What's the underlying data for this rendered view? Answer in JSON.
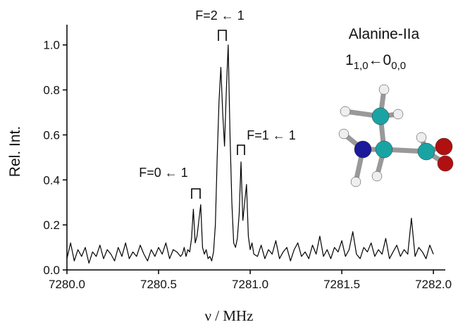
{
  "chart_data": {
    "type": "line",
    "x_label": "ν / MHz",
    "y_label": "Rel. Int.",
    "annotations": [
      "F=2 ← 1",
      "F=1 ← 1",
      "F=0 ← 1"
    ],
    "molecule": "Alanine-IIa",
    "transition": [
      "1",
      "1,0",
      "←0",
      "0,0"
    ],
    "xlim": [
      7280.0,
      7282.065
    ],
    "ylim": [
      0,
      1.09
    ],
    "xticks": [
      {
        "value": 7280,
        "label": "7280.0"
      },
      7280.5,
      {
        "value": 7281,
        "label": "7281.0"
      },
      7281.5,
      {
        "value": 7282,
        "label": "7282.0"
      }
    ],
    "yticks": [
      {
        "value": 0,
        "label": "0.0"
      },
      0.2,
      0.4,
      0.6,
      0.8,
      {
        "value": 1,
        "label": "1.0"
      }
    ],
    "color": "#000000",
    "x": [
      7280.0,
      7280.02,
      7280.04,
      7280.06,
      7280.08,
      7280.1,
      7280.12,
      7280.14,
      7280.16,
      7280.18,
      7280.2,
      7280.22,
      7280.24,
      7280.26,
      7280.28,
      7280.3,
      7280.32,
      7280.34,
      7280.36,
      7280.38,
      7280.4,
      7280.42,
      7280.44,
      7280.46,
      7280.48,
      7280.5,
      7280.52,
      7280.54,
      7280.56,
      7280.58,
      7280.6,
      7280.62,
      7280.63,
      7280.64,
      7280.65,
      7280.66,
      7280.67,
      7280.68,
      7280.69,
      7280.7,
      7280.71,
      7280.72,
      7280.73,
      7280.74,
      7280.75,
      7280.76,
      7280.77,
      7280.78,
      7280.79,
      7280.8,
      7280.81,
      7280.82,
      7280.83,
      7280.84,
      7280.85,
      7280.86,
      7280.87,
      7280.88,
      7280.89,
      7280.9,
      7280.91,
      7280.92,
      7280.93,
      7280.94,
      7280.95,
      7280.96,
      7280.97,
      7280.98,
      7280.99,
      7281.0,
      7281.01,
      7281.02,
      7281.04,
      7281.06,
      7281.08,
      7281.1,
      7281.12,
      7281.14,
      7281.16,
      7281.18,
      7281.2,
      7281.22,
      7281.24,
      7281.26,
      7281.28,
      7281.3,
      7281.32,
      7281.34,
      7281.36,
      7281.38,
      7281.4,
      7281.42,
      7281.44,
      7281.46,
      7281.48,
      7281.5,
      7281.52,
      7281.54,
      7281.56,
      7281.58,
      7281.6,
      7281.62,
      7281.64,
      7281.66,
      7281.68,
      7281.7,
      7281.72,
      7281.74,
      7281.76,
      7281.78,
      7281.8,
      7281.82,
      7281.84,
      7281.86,
      7281.88,
      7281.9,
      7281.92,
      7281.94,
      7281.96,
      7281.98,
      7282.0
    ],
    "values": [
      0.05,
      0.12,
      0.04,
      0.09,
      0.06,
      0.1,
      0.03,
      0.08,
      0.06,
      0.11,
      0.05,
      0.09,
      0.07,
      0.04,
      0.1,
      0.06,
      0.12,
      0.05,
      0.08,
      0.06,
      0.11,
      0.07,
      0.04,
      0.09,
      0.06,
      0.1,
      0.07,
      0.12,
      0.05,
      0.09,
      0.08,
      0.06,
      0.07,
      0.1,
      0.06,
      0.09,
      0.08,
      0.14,
      0.27,
      0.12,
      0.15,
      0.22,
      0.29,
      0.1,
      0.07,
      0.09,
      0.05,
      0.06,
      0.04,
      0.08,
      0.2,
      0.5,
      0.75,
      0.9,
      0.7,
      0.55,
      0.8,
      1.0,
      0.6,
      0.3,
      0.12,
      0.1,
      0.14,
      0.25,
      0.48,
      0.22,
      0.3,
      0.38,
      0.15,
      0.09,
      0.12,
      0.07,
      0.06,
      0.11,
      0.05,
      0.09,
      0.07,
      0.13,
      0.05,
      0.08,
      0.1,
      0.04,
      0.09,
      0.12,
      0.06,
      0.08,
      0.05,
      0.11,
      0.07,
      0.15,
      0.06,
      0.09,
      0.05,
      0.1,
      0.08,
      0.13,
      0.06,
      0.09,
      0.17,
      0.07,
      0.05,
      0.1,
      0.08,
      0.12,
      0.06,
      0.09,
      0.07,
      0.14,
      0.05,
      0.08,
      0.11,
      0.06,
      0.09,
      0.07,
      0.23,
      0.06,
      0.1,
      0.08,
      0.05,
      0.11,
      0.07
    ]
  }
}
